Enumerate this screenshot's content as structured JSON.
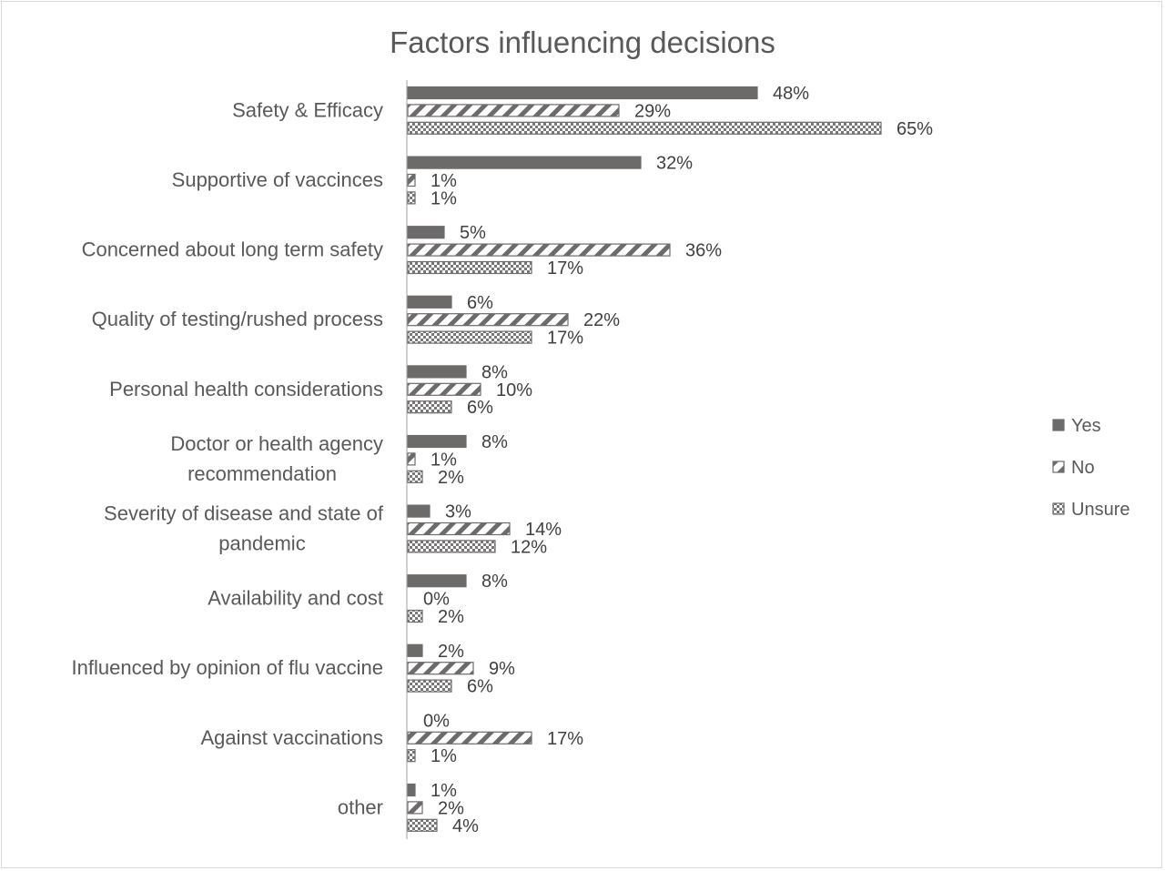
{
  "chart_data": {
    "type": "bar",
    "orientation": "horizontal",
    "title": "Factors influencing decisions",
    "categories": [
      "Safety & Efficacy",
      "Supportive of vaccinces",
      "Concerned about long term safety",
      "Quality of testing/rushed process",
      "Personal health considerations",
      "Doctor or health agency recommendation",
      "Severity of disease and state of pandemic",
      "Availability and cost",
      "Influenced by opinion of flu vaccine",
      "Against vaccinations",
      "other"
    ],
    "category_lines": [
      [
        "Safety & Efficacy"
      ],
      [
        "Supportive of vaccinces"
      ],
      [
        "Concerned about long term safety"
      ],
      [
        "Quality of testing/rushed process"
      ],
      [
        "Personal health considerations"
      ],
      [
        "Doctor or health agency",
        "recommendation"
      ],
      [
        "Severity of disease and state of",
        "pandemic"
      ],
      [
        "Availability and cost"
      ],
      [
        "Influenced by opinion of flu vaccine"
      ],
      [
        "Against vaccinations"
      ],
      [
        "other"
      ]
    ],
    "series": [
      {
        "name": "Yes",
        "pattern": "solid",
        "values": [
          48,
          32,
          5,
          6,
          8,
          8,
          3,
          8,
          2,
          0,
          1
        ]
      },
      {
        "name": "No",
        "pattern": "diagonal",
        "values": [
          29,
          1,
          36,
          22,
          10,
          1,
          14,
          0,
          9,
          17,
          2
        ]
      },
      {
        "name": "Unsure",
        "pattern": "checker",
        "values": [
          65,
          1,
          17,
          17,
          6,
          2,
          12,
          2,
          6,
          1,
          4
        ]
      }
    ],
    "value_suffix": "%",
    "xlim": [
      0,
      100
    ],
    "legend_position": "right",
    "grid": false,
    "colors": {
      "bar": "#6d6a6a",
      "text": "#595959",
      "axis": "#bfbfbf"
    }
  }
}
